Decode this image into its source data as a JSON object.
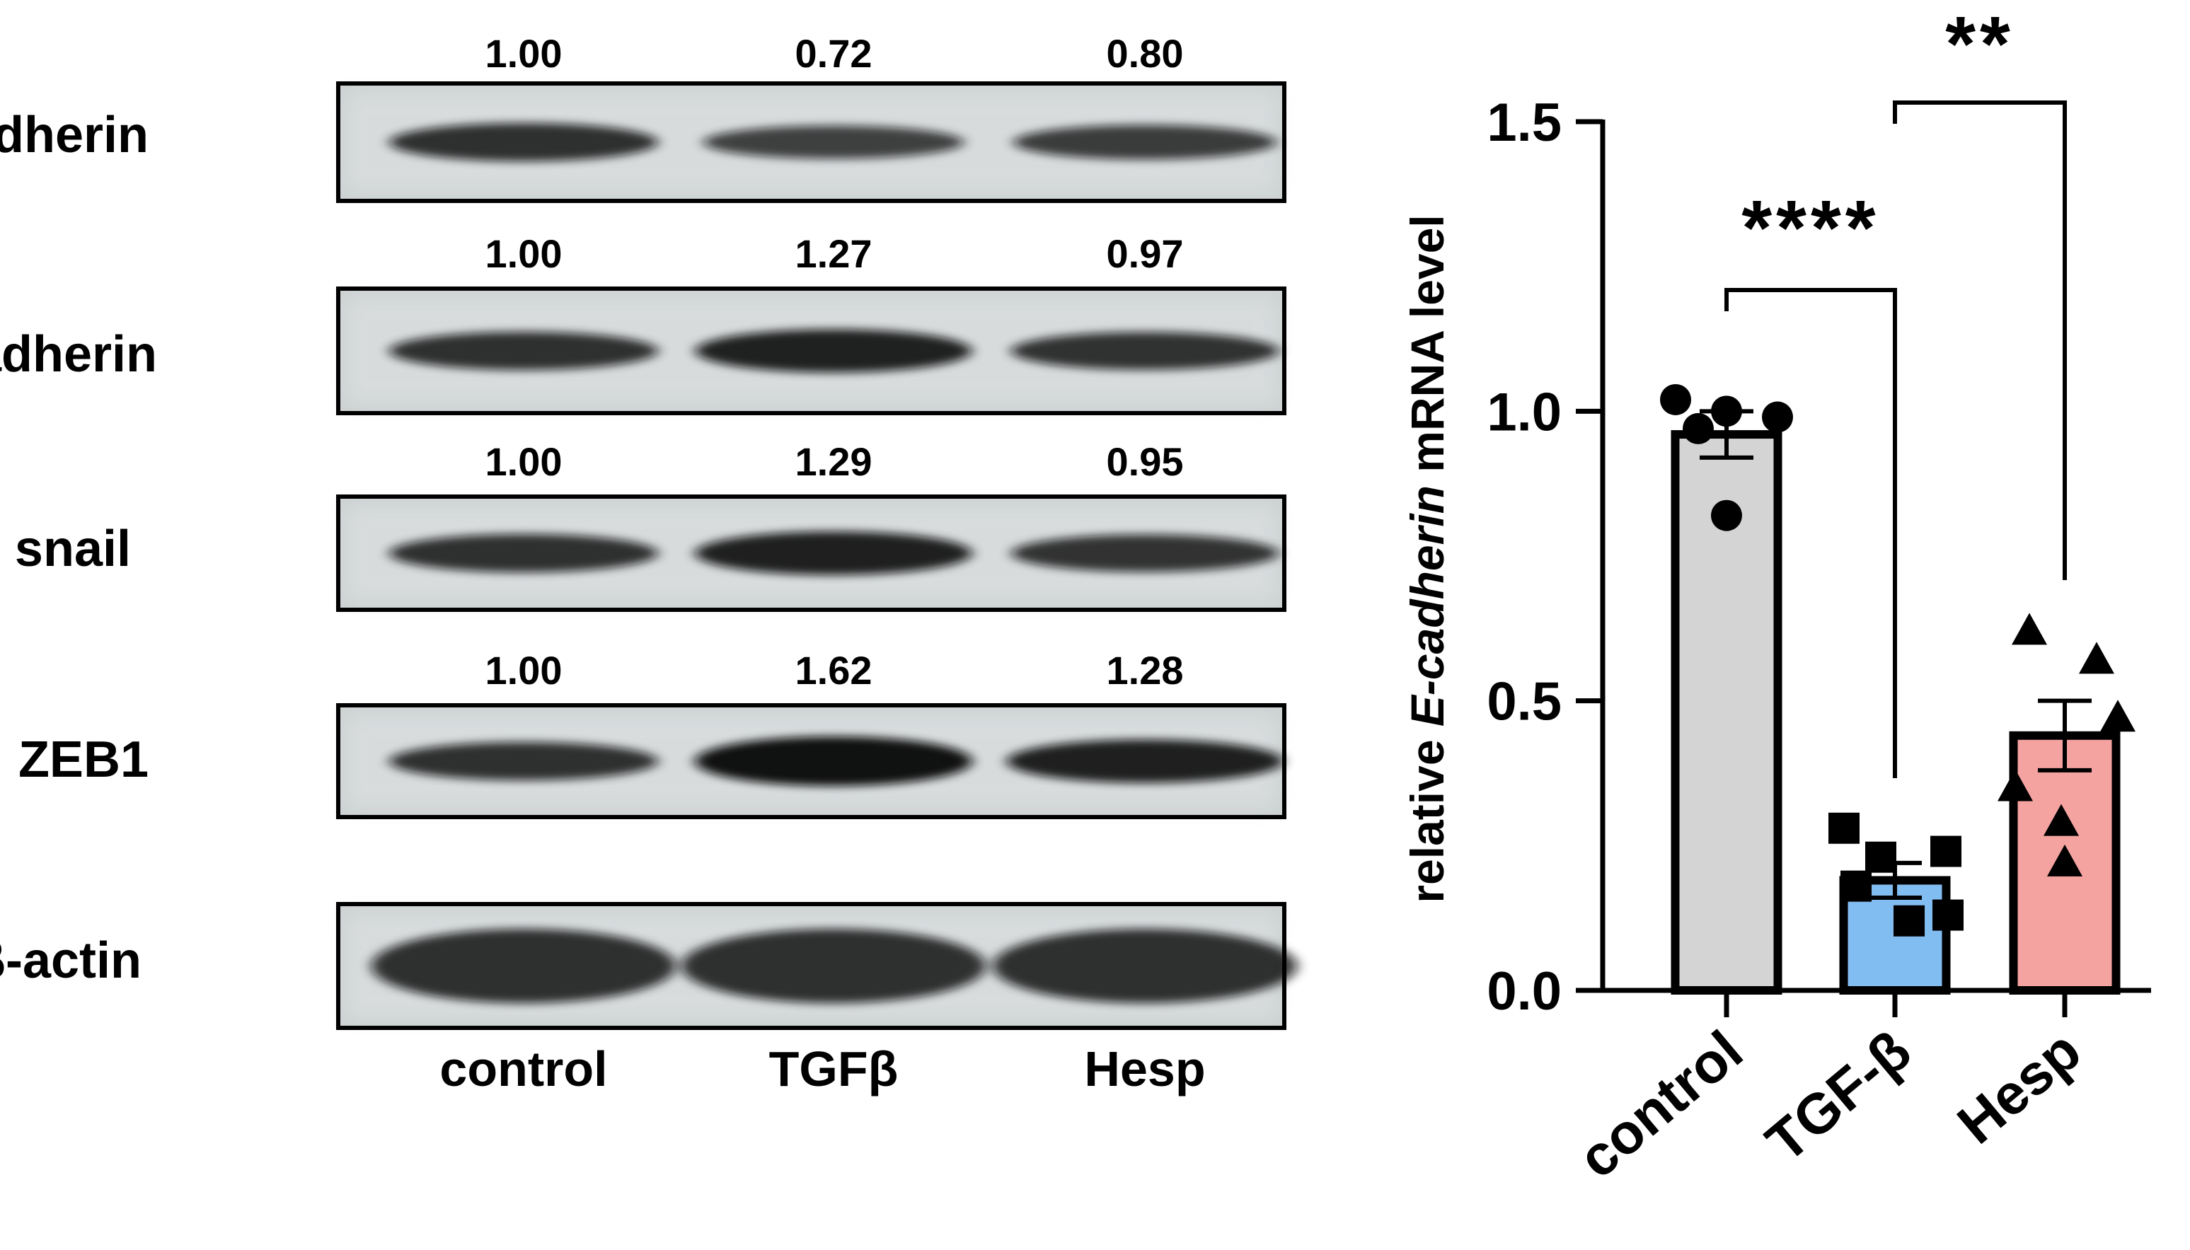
{
  "colors": {
    "ink": "#000000",
    "membrane": "#ccd1d2",
    "band": "#111111",
    "control_bar": "#d4d4d4",
    "tgf_bar": "#82bdf2",
    "hesp_bar": "#f5a3a0"
  },
  "western_blot": {
    "lanes": [
      "control",
      "TGFβ",
      "Hesp"
    ],
    "rows": [
      {
        "label": "E-cadherin",
        "quant": [
          "1.00",
          "0.72",
          "0.80"
        ]
      },
      {
        "label": "N-cadherin",
        "quant": [
          "1.00",
          "1.27",
          "0.97"
        ]
      },
      {
        "label": "snail",
        "quant": [
          "1.00",
          "1.29",
          "0.95"
        ]
      },
      {
        "label": "ZEB1",
        "quant": [
          "1.00",
          "1.62",
          "1.28"
        ]
      },
      {
        "label": "β-actin",
        "quant": []
      }
    ],
    "band_intensity": [
      [
        1.0,
        0.72,
        0.8
      ],
      [
        1.0,
        1.27,
        0.97
      ],
      [
        1.0,
        1.29,
        0.95
      ],
      [
        1.0,
        1.62,
        1.28
      ],
      [
        1.0,
        1.0,
        1.0
      ]
    ]
  },
  "chart_data": {
    "type": "bar",
    "ylabel_prefix": "relative ",
    "ylabel_italic": "E-cadherin",
    "ylabel_suffix": " mRNA level",
    "ylim": [
      0,
      1.5
    ],
    "yticks": [
      "0.0",
      "0.5",
      "1.0",
      "1.5"
    ],
    "categories": [
      "control",
      "TGF-β",
      "Hesp"
    ],
    "values": [
      0.96,
      0.19,
      0.44
    ],
    "sem": [
      0.04,
      0.03,
      0.06
    ],
    "points": [
      [
        1.02,
        1.0,
        0.99,
        0.97,
        0.82
      ],
      [
        0.28,
        0.23,
        0.24,
        0.18,
        0.12,
        0.13
      ],
      [
        0.62,
        0.57,
        0.47,
        0.35,
        0.22,
        0.29
      ]
    ],
    "markers": [
      "circle",
      "square",
      "triangle"
    ],
    "significance": [
      {
        "from": 0,
        "to": 1,
        "label": "****"
      },
      {
        "from": 1,
        "to": 2,
        "label": "**"
      }
    ]
  }
}
